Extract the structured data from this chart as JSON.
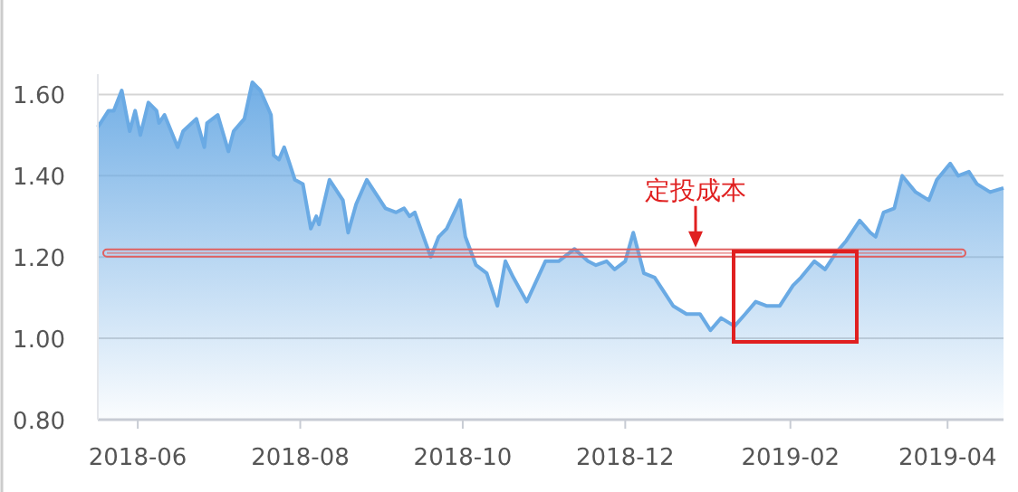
{
  "chart_data": {
    "type": "area",
    "x": [
      "2018-05-17",
      "2018-05-18",
      "2018-05-21",
      "2018-05-23",
      "2018-05-26",
      "2018-05-28",
      "2018-05-29",
      "2018-05-31",
      "2018-06-02",
      "2018-06-05",
      "2018-06-08",
      "2018-06-09",
      "2018-06-11",
      "2018-06-16",
      "2018-06-18",
      "2018-06-23",
      "2018-06-26",
      "2018-06-27",
      "2018-07-01",
      "2018-07-05",
      "2018-07-07",
      "2018-07-11",
      "2018-07-14",
      "2018-07-17",
      "2018-07-21",
      "2018-07-22",
      "2018-07-24",
      "2018-07-26",
      "2018-07-28",
      "2018-07-30",
      "2018-08-02",
      "2018-08-05",
      "2018-08-07",
      "2018-08-08",
      "2018-08-12",
      "2018-08-17",
      "2018-08-19",
      "2018-08-22",
      "2018-08-26",
      "2018-09-02",
      "2018-09-06",
      "2018-09-09",
      "2018-09-11",
      "2018-09-13",
      "2018-09-19",
      "2018-09-22",
      "2018-09-25",
      "2018-09-30",
      "2018-10-02",
      "2018-10-06",
      "2018-10-10",
      "2018-10-14",
      "2018-10-17",
      "2018-10-20",
      "2018-10-25",
      "2018-11-01",
      "2018-11-06",
      "2018-11-12",
      "2018-11-17",
      "2018-11-20",
      "2018-11-24",
      "2018-11-27",
      "2018-12-01",
      "2018-12-04",
      "2018-12-08",
      "2018-12-12",
      "2018-12-19",
      "2018-12-24",
      "2018-12-29",
      "2019-01-02",
      "2019-01-06",
      "2019-01-11",
      "2019-01-15",
      "2019-01-19",
      "2019-01-23",
      "2019-01-28",
      "2019-02-02",
      "2019-02-05",
      "2019-02-10",
      "2019-02-14",
      "2019-02-18",
      "2019-02-22",
      "2019-02-27",
      "2019-03-03",
      "2019-03-05",
      "2019-03-08",
      "2019-03-12",
      "2019-03-15",
      "2019-03-20",
      "2019-03-25",
      "2019-03-28",
      "2019-04-02",
      "2019-04-05",
      "2019-04-09",
      "2019-04-12",
      "2019-04-17",
      "2019-04-22"
    ],
    "series": [
      {
        "color": "#6aaae4",
        "values": [
          1.52,
          1.53,
          1.56,
          1.56,
          1.61,
          1.54,
          1.51,
          1.56,
          1.5,
          1.58,
          1.56,
          1.53,
          1.55,
          1.47,
          1.51,
          1.54,
          1.47,
          1.53,
          1.55,
          1.46,
          1.51,
          1.54,
          1.63,
          1.61,
          1.55,
          1.45,
          1.44,
          1.47,
          1.43,
          1.39,
          1.38,
          1.27,
          1.3,
          1.28,
          1.39,
          1.34,
          1.26,
          1.33,
          1.39,
          1.32,
          1.31,
          1.32,
          1.3,
          1.31,
          1.2,
          1.25,
          1.27,
          1.34,
          1.25,
          1.18,
          1.16,
          1.08,
          1.19,
          1.15,
          1.09,
          1.19,
          1.19,
          1.22,
          1.19,
          1.18,
          1.19,
          1.17,
          1.19,
          1.26,
          1.16,
          1.15,
          1.08,
          1.06,
          1.06,
          1.02,
          1.05,
          1.03,
          1.06,
          1.09,
          1.08,
          1.08,
          1.13,
          1.15,
          1.19,
          1.17,
          1.21,
          1.24,
          1.29,
          1.26,
          1.25,
          1.31,
          1.32,
          1.4,
          1.36,
          1.34,
          1.39,
          1.43,
          1.4,
          1.41,
          1.38,
          1.36,
          1.37
        ]
      }
    ],
    "xlim": [
      "2018-05-17",
      "2019-04-22"
    ],
    "xticks": [
      {
        "value": "2018-06-01",
        "label": "2018-06"
      },
      {
        "value": "2018-08-01",
        "label": "2018-08"
      },
      {
        "value": "2018-10-01",
        "label": "2018-10"
      },
      {
        "value": "2018-12-01",
        "label": "2018-12"
      },
      {
        "value": "2019-02-01",
        "label": "2019-02"
      },
      {
        "value": "2019-04-01",
        "label": "2019-04"
      }
    ],
    "ylim": [
      0.8,
      1.65
    ],
    "yticks": [
      {
        "value": 0.8,
        "label": "0.80"
      },
      {
        "value": 1.0,
        "label": "1.00"
      },
      {
        "value": 1.2,
        "label": "1.20"
      },
      {
        "value": 1.4,
        "label": "1.40"
      },
      {
        "value": 1.6,
        "label": "1.60"
      }
    ],
    "grid": "y",
    "ref_lines": [
      {
        "axis": "y",
        "value": 1.21,
        "color": "#e06060"
      }
    ],
    "annotations": [
      "定投成本"
    ]
  }
}
